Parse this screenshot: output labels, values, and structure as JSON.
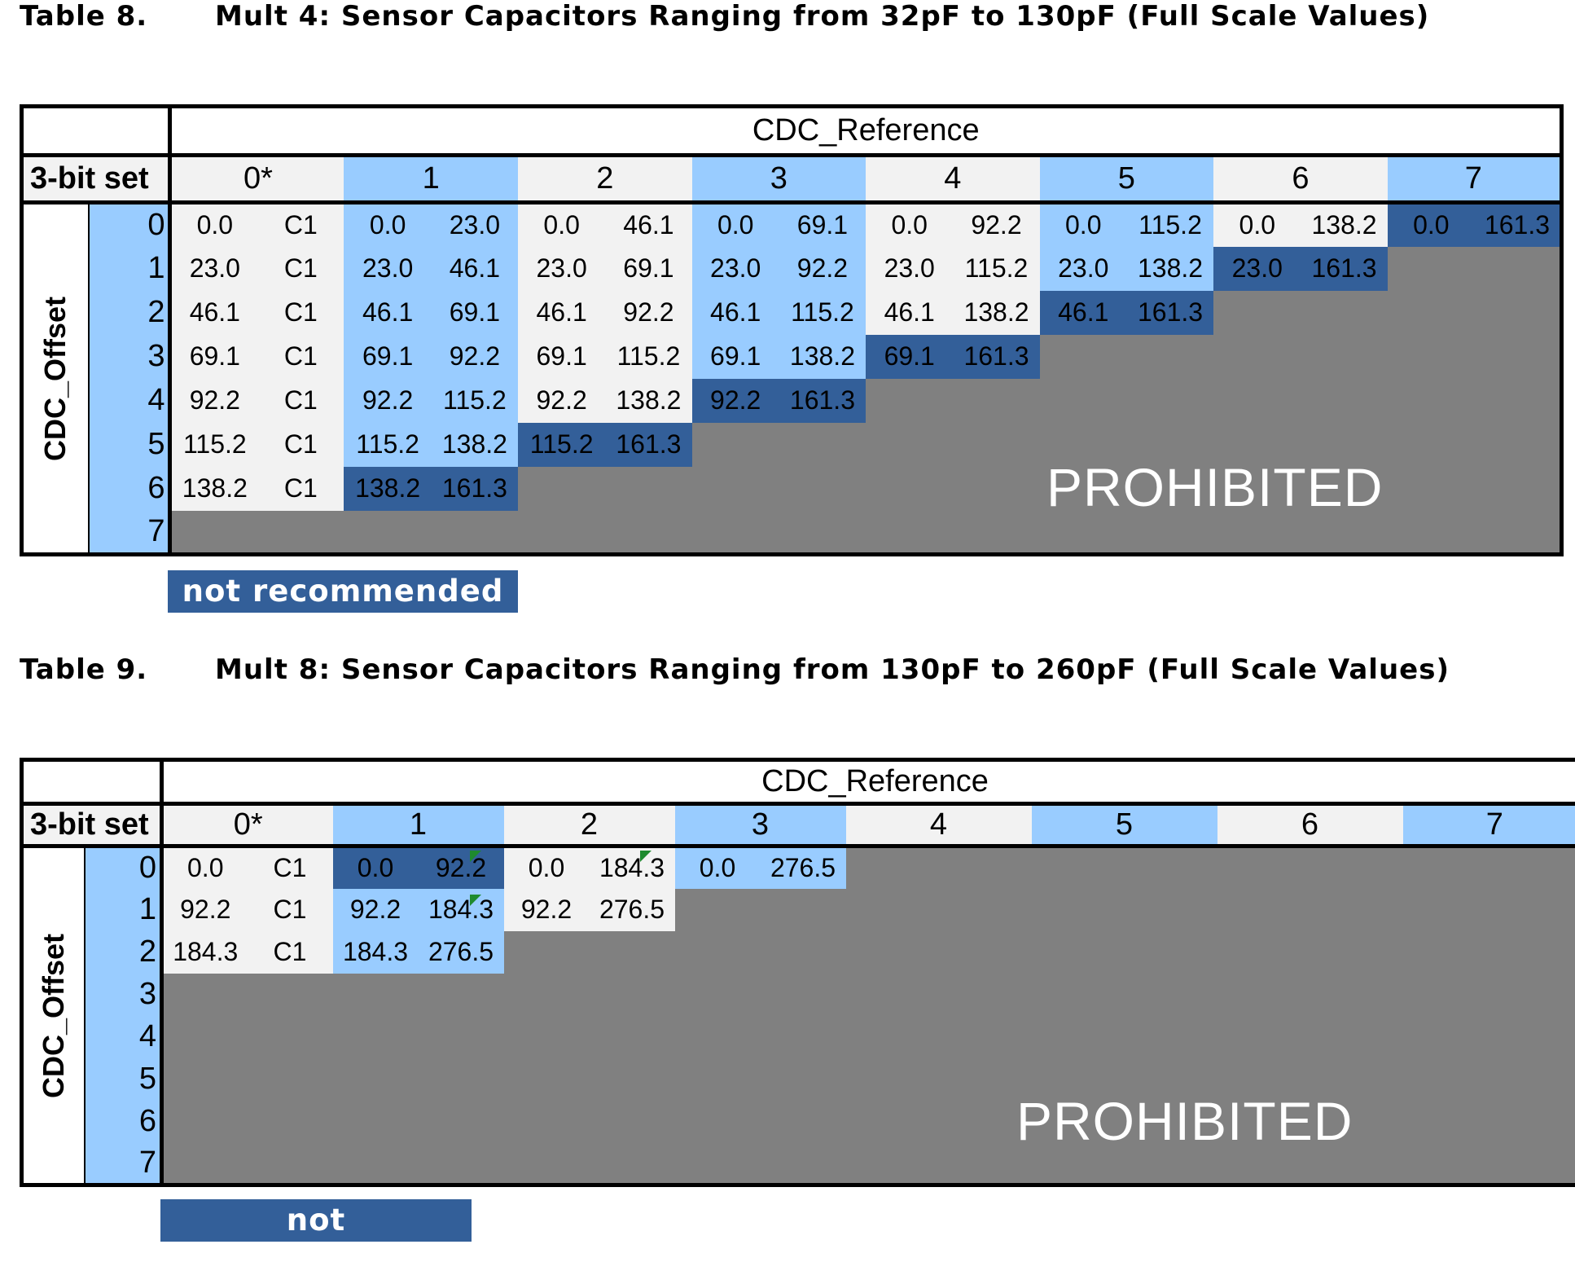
{
  "tables": [
    {
      "number": "Table 8.",
      "title": "Mult 4: Sensor Capacitors Ranging from 32pF to 130pF (Full Scale Values)",
      "reference_label": "CDC_Reference",
      "bitset_label": "3-bit set",
      "offset_label": "CDC_Offset",
      "col_headers": [
        "0*",
        "1",
        "2",
        "3",
        "4",
        "5",
        "6",
        "7"
      ],
      "row_indices": [
        "0",
        "1",
        "2",
        "3",
        "4",
        "5",
        "6",
        "7"
      ],
      "rows": [
        [
          [
            "0.0",
            "C1"
          ],
          [
            "0.0",
            "23.0"
          ],
          [
            "0.0",
            "46.1"
          ],
          [
            "0.0",
            "69.1"
          ],
          [
            "0.0",
            "92.2"
          ],
          [
            "0.0",
            "115.2"
          ],
          [
            "0.0",
            "138.2"
          ],
          [
            "0.0",
            "161.3"
          ]
        ],
        [
          [
            "23.0",
            "C1"
          ],
          [
            "23.0",
            "46.1"
          ],
          [
            "23.0",
            "69.1"
          ],
          [
            "23.0",
            "92.2"
          ],
          [
            "23.0",
            "115.2"
          ],
          [
            "23.0",
            "138.2"
          ],
          [
            "23.0",
            "161.3"
          ]
        ],
        [
          [
            "46.1",
            "C1"
          ],
          [
            "46.1",
            "69.1"
          ],
          [
            "46.1",
            "92.2"
          ],
          [
            "46.1",
            "115.2"
          ],
          [
            "46.1",
            "138.2"
          ],
          [
            "46.1",
            "161.3"
          ]
        ],
        [
          [
            "69.1",
            "C1"
          ],
          [
            "69.1",
            "92.2"
          ],
          [
            "69.1",
            "115.2"
          ],
          [
            "69.1",
            "138.2"
          ],
          [
            "69.1",
            "161.3"
          ]
        ],
        [
          [
            "92.2",
            "C1"
          ],
          [
            "92.2",
            "115.2"
          ],
          [
            "92.2",
            "138.2"
          ],
          [
            "92.2",
            "161.3"
          ]
        ],
        [
          [
            "115.2",
            "C1"
          ],
          [
            "115.2",
            "138.2"
          ],
          [
            "115.2",
            "161.3"
          ]
        ],
        [
          [
            "138.2",
            "C1"
          ],
          [
            "138.2",
            "161.3"
          ]
        ],
        []
      ],
      "prohibited_label": "PROHIBITED",
      "not_recommended_label": "not recommended"
    },
    {
      "number": "Table 9.",
      "title": "Mult 8: Sensor Capacitors Ranging from 130pF to 260pF (Full Scale Values)",
      "reference_label": "CDC_Reference",
      "bitset_label": "3-bit set",
      "offset_label": "CDC_Offset",
      "col_headers": [
        "0*",
        "1",
        "2",
        "3",
        "4",
        "5",
        "6",
        "7"
      ],
      "row_indices": [
        "0",
        "1",
        "2",
        "3",
        "4",
        "5",
        "6",
        "7"
      ],
      "rows": [
        [
          [
            "0.0",
            "C1"
          ],
          [
            "0.0",
            "92.2"
          ],
          [
            "0.0",
            "184.3"
          ],
          [
            "0.0",
            "276.5"
          ]
        ],
        [
          [
            "92.2",
            "C1"
          ],
          [
            "92.2",
            "184.3"
          ],
          [
            "92.2",
            "276.5"
          ]
        ],
        [
          [
            "184.3",
            "C1"
          ],
          [
            "184.3",
            "276.5"
          ]
        ],
        [],
        [],
        [],
        [],
        []
      ],
      "prohibited_label": "PROHIBITED",
      "not_recommended_label": "not recommended"
    }
  ],
  "colors": {
    "light_blue": "#99ccff",
    "light_gray": "#f2f2f2",
    "dark_blue": "#335f99",
    "prohibited_gray": "#808080",
    "marker_green": "#1e8a2e"
  }
}
